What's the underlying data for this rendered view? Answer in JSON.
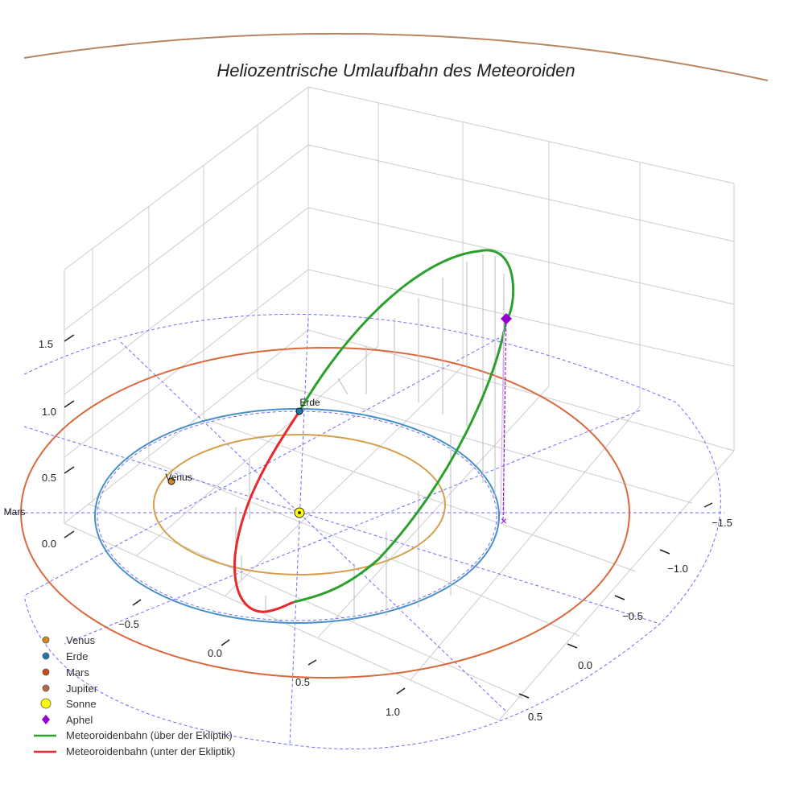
{
  "chart_data": {
    "type": "3d-orbit",
    "title": "Heliozentrische Umlaufbahn des Meteoroiden",
    "axes": {
      "x": {
        "ticks": [
          "−1.5",
          "−1.0",
          "−0.5",
          "0.0",
          "0.5"
        ]
      },
      "y": {
        "ticks": [
          "−0.5",
          "0.0",
          "0.5",
          "1.0"
        ]
      },
      "z": {
        "ticks": [
          "0.0",
          "0.5",
          "1.0",
          "1.5"
        ]
      },
      "grid": true
    },
    "planet_orbits": [
      {
        "name": "Venus",
        "radius_au": 0.72,
        "color": "#d4a04b"
      },
      {
        "name": "Erde",
        "radius_au": 1.0,
        "color": "#4a90c8"
      },
      {
        "name": "Mars",
        "radius_au": 1.52,
        "color": "#d9693d"
      }
    ],
    "planet_labels": [
      {
        "name": "Venus",
        "color": "#d4891a"
      },
      {
        "name": "Erde",
        "color": "#1f77b4"
      },
      {
        "name": "Mars",
        "color": "#c44a1c"
      }
    ],
    "sun": {
      "name": "Sonne",
      "color": "#ffff00"
    },
    "aphel": {
      "name": "Aphel",
      "color": "#9400d3"
    },
    "meteoroid": {
      "above": {
        "name": "Meteoroidenbahn (über der Ekliptik)",
        "color": "#2ca02c"
      },
      "below": {
        "name": "Meteoroidenbahn (unter der Ekliptik)",
        "color": "#e8282a"
      }
    },
    "legend": {
      "position": "bottom-left",
      "entries": [
        {
          "label": "Venus",
          "marker": "circle",
          "color": "#d4891a"
        },
        {
          "label": "Erde",
          "marker": "circle",
          "color": "#1f77b4"
        },
        {
          "label": "Mars",
          "marker": "circle",
          "color": "#c44a1c"
        },
        {
          "label": "Jupiter",
          "marker": "circle",
          "color": "#b86b3a"
        },
        {
          "label": "Sonne",
          "marker": "big-circle",
          "color": "#ffff00"
        },
        {
          "label": "Aphel",
          "marker": "diamond",
          "color": "#9400d3"
        },
        {
          "label": "Meteoroidenbahn (über der Ekliptik)",
          "marker": "line",
          "color": "#2ca02c"
        },
        {
          "label": "Meteoroidenbahn (unter der Ekliptik)",
          "marker": "line",
          "color": "#e8282a"
        }
      ]
    }
  }
}
